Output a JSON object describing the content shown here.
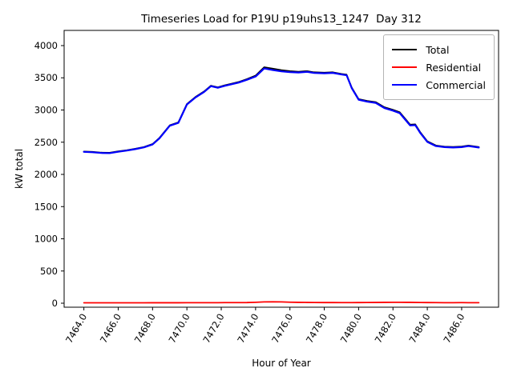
{
  "window": {
    "title": "Timeseries Load for P19U p19uhs13_1247  Day 312"
  },
  "chart_data": {
    "type": "line",
    "title": "Timeseries Load for P19U p19uhs13_1247  Day 312",
    "xlabel": "Hour of Year",
    "ylabel": "kW total",
    "grid": false,
    "legend_position": "upper right",
    "x_tick_labels": [
      "7464.0",
      "7466.0",
      "7468.0",
      "7470.0",
      "7472.0",
      "7474.0",
      "7476.0",
      "7478.0",
      "7480.0",
      "7482.0",
      "7484.0",
      "7486.0"
    ],
    "x_tick_rotation": 60,
    "y_ticks": [
      0,
      500,
      1000,
      1500,
      2000,
      2500,
      3000,
      3500,
      4000
    ],
    "xlim": [
      7462.85,
      7488.15
    ],
    "ylim": [
      -62,
      4236
    ],
    "x": [
      7464,
      7464.5,
      7465,
      7465.5,
      7466,
      7466.5,
      7467,
      7467.5,
      7468,
      7468.4,
      7469,
      7469.5,
      7470,
      7470.5,
      7471,
      7471.4,
      7471.8,
      7472.2,
      7472.6,
      7473,
      7473.5,
      7474,
      7474.5,
      7475,
      7475.5,
      7476,
      7476.5,
      7477,
      7477.4,
      7478,
      7478.5,
      7479,
      7479.3,
      7479.6,
      7480,
      7480.5,
      7481,
      7481.5,
      7482,
      7482.4,
      7483,
      7483.3,
      7483.6,
      7484,
      7484.5,
      7485,
      7485.5,
      7486,
      7486.4,
      7487
    ],
    "series": [
      {
        "name": "Total",
        "color": "#000000",
        "linewidth": 1.8,
        "values": [
          2356,
          2350,
          2339,
          2336,
          2358,
          2376,
          2399,
          2426,
          2472,
          2567,
          2762,
          2807,
          3093,
          3203,
          3288,
          3378,
          3353,
          3384,
          3409,
          3434,
          3480,
          3534,
          3665,
          3642,
          3620,
          3604,
          3595,
          3604,
          3586,
          3580,
          3586,
          3561,
          3549,
          3349,
          3170,
          3141,
          3122,
          3043,
          3004,
          2964,
          2773,
          2777,
          2651,
          2515,
          2449,
          2432,
          2426,
          2433,
          2448,
          2426
        ]
      },
      {
        "name": "Residential",
        "color": "#ff0000",
        "linewidth": 1.8,
        "values": [
          6,
          6,
          6,
          6,
          6,
          6,
          6,
          6,
          7,
          7,
          7,
          7,
          8,
          8,
          8,
          8,
          8,
          9,
          9,
          9,
          10,
          14,
          20,
          22,
          20,
          16,
          13,
          12,
          11,
          10,
          10,
          9,
          9,
          9,
          10,
          11,
          12,
          13,
          14,
          14,
          13,
          12,
          11,
          10,
          9,
          8,
          8,
          9,
          8,
          8
        ]
      },
      {
        "name": "Commercial",
        "color": "#0000ff",
        "linewidth": 2.2,
        "values": [
          2350,
          2344,
          2333,
          2330,
          2352,
          2370,
          2393,
          2420,
          2465,
          2560,
          2755,
          2800,
          3085,
          3195,
          3280,
          3370,
          3345,
          3375,
          3400,
          3425,
          3470,
          3520,
          3645,
          3620,
          3600,
          3588,
          3582,
          3592,
          3575,
          3570,
          3576,
          3552,
          3540,
          3340,
          3160,
          3130,
          3110,
          3030,
          2990,
          2950,
          2760,
          2765,
          2640,
          2505,
          2440,
          2424,
          2418,
          2424,
          2440,
          2418
        ]
      }
    ]
  }
}
